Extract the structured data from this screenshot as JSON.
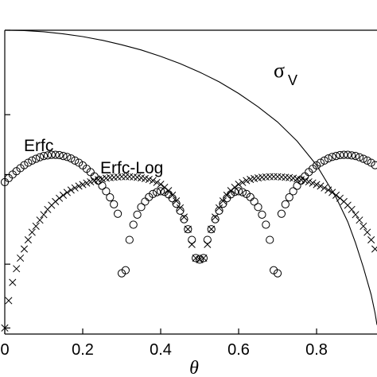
{
  "chart_data": {
    "type": "scatter",
    "title": "",
    "xlabel": "θ",
    "ylabel": "",
    "xlim": [
      0,
      0.955
    ],
    "ylim": [
      0,
      1
    ],
    "grid": false,
    "x_ticks": [
      0,
      0.2,
      0.4,
      0.6,
      0.8
    ],
    "x_tick_labels": [
      "0",
      "0.2",
      "0.4",
      "0.6",
      "0.8"
    ],
    "y_ticks": [
      0.02,
      0.23,
      0.525,
      0.722,
      1.0
    ],
    "annotations": [
      {
        "text": "Erfc",
        "x": 0.065,
        "y": 0.625
      },
      {
        "text": "Erfc-Log",
        "x": 0.24,
        "y": 0.52
      },
      {
        "text": "σ",
        "sub": "V",
        "x": 0.8,
        "y": 0.845
      }
    ],
    "series": [
      {
        "name": "σ_V",
        "marker": "line",
        "x": [
          0.0,
          0.05,
          0.1,
          0.15,
          0.2,
          0.25,
          0.3,
          0.35,
          0.4,
          0.45,
          0.5,
          0.55,
          0.6,
          0.65,
          0.7,
          0.75,
          0.8,
          0.85,
          0.88,
          0.9,
          0.92,
          0.94,
          0.95,
          0.955
        ],
        "y": [
          1.0,
          0.999,
          0.995,
          0.988,
          0.979,
          0.967,
          0.952,
          0.935,
          0.914,
          0.89,
          0.862,
          0.83,
          0.792,
          0.748,
          0.698,
          0.635,
          0.556,
          0.45,
          0.37,
          0.3,
          0.22,
          0.13,
          0.07,
          0.03
        ]
      },
      {
        "name": "Erfc",
        "marker": "circle",
        "x": [
          0.0,
          0.01,
          0.02,
          0.03,
          0.04,
          0.05,
          0.06,
          0.07,
          0.08,
          0.09,
          0.1,
          0.11,
          0.12,
          0.13,
          0.14,
          0.15,
          0.16,
          0.17,
          0.18,
          0.19,
          0.2,
          0.21,
          0.22,
          0.23,
          0.24,
          0.25,
          0.26,
          0.27,
          0.28,
          0.29,
          0.3,
          0.31,
          0.32,
          0.33,
          0.34,
          0.35,
          0.36,
          0.37,
          0.38,
          0.39,
          0.4,
          0.41,
          0.42,
          0.43,
          0.44,
          0.45,
          0.46,
          0.47,
          0.48,
          0.49,
          0.5,
          0.51,
          0.52,
          0.53,
          0.54,
          0.55,
          0.56,
          0.57,
          0.58,
          0.59,
          0.6,
          0.61,
          0.62,
          0.63,
          0.64,
          0.65,
          0.66,
          0.67,
          0.68,
          0.69,
          0.7,
          0.71,
          0.72,
          0.73,
          0.74,
          0.75,
          0.76,
          0.77,
          0.78,
          0.79,
          0.8,
          0.81,
          0.82,
          0.83,
          0.84,
          0.85,
          0.86,
          0.87,
          0.88,
          0.89,
          0.9,
          0.91,
          0.92,
          0.93,
          0.94,
          0.95
        ],
        "y": [
          0.5,
          0.513,
          0.525,
          0.536,
          0.546,
          0.556,
          0.564,
          0.571,
          0.577,
          0.582,
          0.586,
          0.588,
          0.59,
          0.59,
          0.589,
          0.586,
          0.583,
          0.578,
          0.571,
          0.564,
          0.555,
          0.544,
          0.533,
          0.519,
          0.505,
          0.488,
          0.47,
          0.45,
          0.427,
          0.396,
          0.2,
          0.21,
          0.31,
          0.36,
          0.393,
          0.418,
          0.436,
          0.451,
          0.461,
          0.467,
          0.47,
          0.468,
          0.46,
          0.447,
          0.429,
          0.406,
          0.378,
          0.345,
          0.31,
          0.25,
          0.245,
          0.25,
          0.31,
          0.345,
          0.378,
          0.406,
          0.429,
          0.447,
          0.46,
          0.468,
          0.47,
          0.467,
          0.461,
          0.451,
          0.436,
          0.418,
          0.393,
          0.36,
          0.31,
          0.21,
          0.2,
          0.396,
          0.427,
          0.45,
          0.47,
          0.488,
          0.505,
          0.519,
          0.533,
          0.544,
          0.555,
          0.564,
          0.571,
          0.578,
          0.583,
          0.586,
          0.589,
          0.59,
          0.59,
          0.588,
          0.586,
          0.582,
          0.577,
          0.571,
          0.564,
          0.556
        ]
      },
      {
        "name": "Erfc-Log",
        "marker": "cross",
        "x": [
          0.0,
          0.01,
          0.02,
          0.03,
          0.04,
          0.05,
          0.06,
          0.07,
          0.08,
          0.09,
          0.1,
          0.11,
          0.12,
          0.13,
          0.14,
          0.15,
          0.16,
          0.17,
          0.18,
          0.19,
          0.2,
          0.21,
          0.22,
          0.23,
          0.24,
          0.25,
          0.26,
          0.27,
          0.28,
          0.29,
          0.3,
          0.31,
          0.32,
          0.33,
          0.34,
          0.35,
          0.36,
          0.37,
          0.38,
          0.39,
          0.4,
          0.41,
          0.42,
          0.43,
          0.44,
          0.45,
          0.46,
          0.47,
          0.48,
          0.49,
          0.5,
          0.51,
          0.52,
          0.53,
          0.54,
          0.55,
          0.56,
          0.57,
          0.58,
          0.59,
          0.6,
          0.61,
          0.62,
          0.63,
          0.64,
          0.65,
          0.66,
          0.67,
          0.68,
          0.69,
          0.7,
          0.71,
          0.72,
          0.73,
          0.74,
          0.75,
          0.76,
          0.77,
          0.78,
          0.79,
          0.8,
          0.81,
          0.82,
          0.83,
          0.84,
          0.85,
          0.86,
          0.87,
          0.88,
          0.89,
          0.9,
          0.91,
          0.92,
          0.93,
          0.94,
          0.95
        ],
        "y": [
          0.02,
          0.11,
          0.17,
          0.215,
          0.25,
          0.28,
          0.31,
          0.335,
          0.355,
          0.375,
          0.393,
          0.41,
          0.424,
          0.436,
          0.447,
          0.457,
          0.466,
          0.474,
          0.481,
          0.487,
          0.492,
          0.497,
          0.501,
          0.505,
          0.508,
          0.511,
          0.513,
          0.515,
          0.516,
          0.517,
          0.518,
          0.518,
          0.518,
          0.517,
          0.516,
          0.514,
          0.512,
          0.509,
          0.505,
          0.499,
          0.493,
          0.483,
          0.472,
          0.457,
          0.438,
          0.415,
          0.385,
          0.345,
          0.295,
          0.25,
          0.245,
          0.25,
          0.295,
          0.345,
          0.385,
          0.415,
          0.438,
          0.457,
          0.472,
          0.483,
          0.493,
          0.499,
          0.505,
          0.509,
          0.512,
          0.514,
          0.516,
          0.517,
          0.518,
          0.518,
          0.518,
          0.517,
          0.516,
          0.515,
          0.513,
          0.511,
          0.508,
          0.505,
          0.501,
          0.497,
          0.492,
          0.487,
          0.481,
          0.474,
          0.466,
          0.457,
          0.447,
          0.436,
          0.424,
          0.41,
          0.393,
          0.375,
          0.355,
          0.335,
          0.31,
          0.28
        ]
      }
    ]
  }
}
